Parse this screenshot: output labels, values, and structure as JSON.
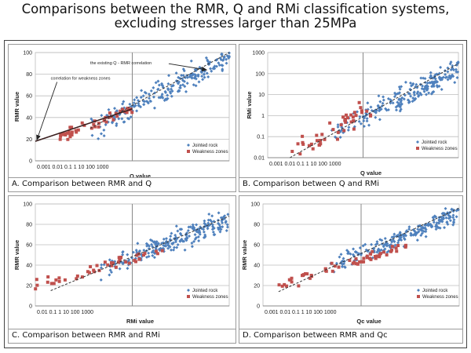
{
  "title": {
    "line1": "Comparisons between the RMR, Q and RMi classification systems,",
    "line2": "excluding stresses larger than 25MPa"
  },
  "colors": {
    "jointed": "#4f81bd",
    "weakness": "#c0504d",
    "fit": "#333333",
    "grid": "#bdbdbd",
    "axis": "#333333"
  },
  "chart_data": [
    {
      "id": "A",
      "type": "scatter",
      "caption": "A. Comparison between RMR and Q",
      "xlabel": "Q value",
      "ylabel": "RMR value",
      "xscale": "log",
      "xlim": [
        0.001,
        1000
      ],
      "ylim": [
        0,
        100
      ],
      "x_ticks_label": "0.001 0.01 0.1 1 10 100 1000",
      "y_ticks": [
        0,
        20,
        40,
        60,
        80,
        100
      ],
      "grid": true,
      "legend_position": "lower-right",
      "series": [
        {
          "name": "Jointed rock",
          "marker": "diamond",
          "x_range": [
            0.05,
            1000
          ],
          "fit": [
            [
              0.05,
              28
            ],
            [
              1000,
              97
            ]
          ],
          "spread": 10,
          "n": 230
        },
        {
          "name": "Weakness zones",
          "marker": "square",
          "x_range": [
            0.003,
            1
          ],
          "fit": [
            [
              0.003,
              20
            ],
            [
              1,
              48
            ]
          ],
          "spread": 4,
          "n": 45
        }
      ],
      "fit_lines": [
        {
          "from": [
            0.05,
            30
          ],
          "to": [
            1000,
            100
          ],
          "style": "dashed"
        },
        {
          "from": [
            0.001,
            18
          ],
          "to": [
            1,
            48
          ],
          "style": "solid"
        }
      ],
      "annotations": [
        {
          "text": "the existing Q - RMR correlation",
          "at": [
            0.05,
            89
          ],
          "arrow_to": [
            200,
            84
          ]
        },
        {
          "text": "correlation for weakness zones",
          "at": [
            0.003,
            75
          ],
          "arrow_to": [
            0.001,
            18
          ]
        }
      ]
    },
    {
      "id": "B",
      "type": "scatter",
      "caption": "B. Comparison between Q and RMi",
      "xlabel": "Q value",
      "ylabel": "RMi value",
      "xscale": "log",
      "yscale": "log",
      "xlim": [
        0.001,
        1000
      ],
      "ylim": [
        0.01,
        1000
      ],
      "x_ticks_label": "0.001 0.01 0.1 1 10 100 1000",
      "y_ticks": [
        0.01,
        0.1,
        1,
        10,
        100,
        1000
      ],
      "y_tick_labels": [
        "0.01",
        "0.1",
        "1",
        "10",
        "100",
        "1000"
      ],
      "grid": true,
      "legend_position": "lower-right",
      "series": [
        {
          "name": "Jointed rock",
          "marker": "diamond",
          "x_range": [
            0.1,
            1000
          ],
          "fit": [
            [
              0.1,
              0.15
            ],
            [
              1000,
              150
            ]
          ],
          "spread": 0.45,
          "n": 230
        },
        {
          "name": "Weakness zones",
          "marker": "square",
          "x_range": [
            0.005,
            2
          ],
          "fit": [
            [
              0.005,
              0.01
            ],
            [
              2,
              3
            ]
          ],
          "spread": 0.4,
          "n": 45
        }
      ],
      "fit_lines": [
        {
          "from": [
            0.005,
            0.01
          ],
          "to": [
            1000,
            300
          ],
          "style": "dashed"
        }
      ]
    },
    {
      "id": "C",
      "type": "scatter",
      "caption": "C. Comparison between RMR and RMi",
      "xlabel": "RMi value",
      "ylabel": "RMR value",
      "xscale": "log",
      "xlim": [
        0.001,
        1000
      ],
      "ylim": [
        0,
        100
      ],
      "x_ticks_label": "0.01 0.1 1 10 100 1000",
      "y_ticks": [
        0,
        20,
        40,
        60,
        80,
        100
      ],
      "grid": true,
      "legend_position": "lower-right",
      "series": [
        {
          "name": "Jointed rock",
          "marker": "diamond",
          "x_range": [
            0.1,
            1000
          ],
          "fit": [
            [
              0.1,
              35
            ],
            [
              1000,
              85
            ]
          ],
          "spread": 9,
          "n": 230
        },
        {
          "name": "Weakness zones",
          "marker": "square",
          "x_range": [
            0.001,
            10
          ],
          "fit": [
            [
              0.001,
              20
            ],
            [
              10,
              55
            ]
          ],
          "spread": 5,
          "n": 45
        }
      ],
      "fit_lines": [
        {
          "from": [
            0.003,
            15
          ],
          "to": [
            1000,
            88
          ],
          "style": "dashed"
        }
      ]
    },
    {
      "id": "D",
      "type": "scatter",
      "caption": "D. Comparison between RMR and Qc",
      "xlabel": "Qc value",
      "ylabel": "RMR value",
      "xscale": "log",
      "xlim": [
        0.001,
        1000
      ],
      "ylim": [
        0,
        100
      ],
      "x_ticks_label": "0.001 0.01 0.1 1 10 100 1000",
      "y_ticks": [
        0,
        20,
        40,
        60,
        80,
        100
      ],
      "grid": true,
      "legend_position": "lower-right",
      "series": [
        {
          "name": "Jointed rock",
          "marker": "diamond",
          "x_range": [
            0.1,
            1000
          ],
          "fit": [
            [
              0.1,
              38
            ],
            [
              1000,
              90
            ]
          ],
          "spread": 7,
          "n": 230
        },
        {
          "name": "Weakness zones",
          "marker": "square",
          "x_range": [
            0.002,
            30
          ],
          "fit": [
            [
              0.002,
              18
            ],
            [
              30,
              60
            ]
          ],
          "spread": 4,
          "n": 60
        }
      ],
      "fit_lines": [
        {
          "from": [
            0.003,
            14
          ],
          "to": [
            1000,
            96
          ],
          "style": "dashed"
        }
      ]
    }
  ]
}
